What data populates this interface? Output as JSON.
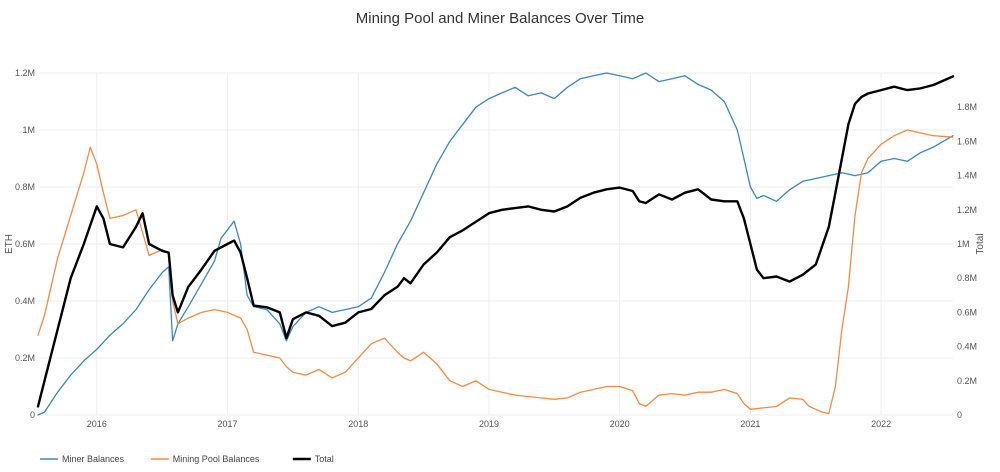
{
  "chart_data": {
    "type": "line",
    "title": "Mining Pool and Miner Balances Over Time",
    "ylabel": "ETH",
    "y2label": "Total",
    "xlim": [
      2015.55,
      2022.55
    ],
    "ylim": [
      0,
      1200000
    ],
    "y2lim": [
      0,
      2000000
    ],
    "x_ticks": [
      2016,
      2017,
      2018,
      2019,
      2020,
      2021,
      2022
    ],
    "x_tick_labels": [
      "2016",
      "2017",
      "2018",
      "2019",
      "2020",
      "2021",
      "2022"
    ],
    "y_ticks": [
      0,
      200000,
      400000,
      600000,
      800000,
      1000000,
      1200000
    ],
    "y_tick_labels": [
      "0",
      "0.2M",
      "0.4M",
      "0.6M",
      "0.8M",
      "1M",
      "1.2M"
    ],
    "y2_ticks": [
      0,
      200000,
      400000,
      600000,
      800000,
      1000000,
      1200000,
      1400000,
      1600000,
      1800000
    ],
    "y2_tick_labels": [
      "0",
      "0.2M",
      "0.4M",
      "0.6M",
      "0.8M",
      "1M",
      "1.2M",
      "1.4M",
      "1.6M",
      "1.8M"
    ],
    "grid": true,
    "legend_position": "bottom-left",
    "series": [
      {
        "name": "Miner Balances",
        "axis": "left",
        "color": "#3a87c0",
        "x": [
          2015.55,
          2015.6,
          2015.7,
          2015.8,
          2015.9,
          2016.0,
          2016.1,
          2016.2,
          2016.3,
          2016.4,
          2016.5,
          2016.55,
          2016.58,
          2016.62,
          2016.7,
          2016.8,
          2016.9,
          2016.95,
          2017.0,
          2017.05,
          2017.1,
          2017.15,
          2017.2,
          2017.3,
          2017.4,
          2017.45,
          2017.5,
          2017.6,
          2017.7,
          2017.8,
          2017.9,
          2018.0,
          2018.1,
          2018.2,
          2018.3,
          2018.4,
          2018.5,
          2018.6,
          2018.7,
          2018.8,
          2018.9,
          2019.0,
          2019.1,
          2019.2,
          2019.3,
          2019.4,
          2019.5,
          2019.6,
          2019.7,
          2019.8,
          2019.9,
          2020.0,
          2020.1,
          2020.2,
          2020.3,
          2020.4,
          2020.5,
          2020.6,
          2020.7,
          2020.8,
          2020.9,
          2020.95,
          2021.0,
          2021.05,
          2021.1,
          2021.2,
          2021.3,
          2021.4,
          2021.5,
          2021.6,
          2021.7,
          2021.8,
          2021.9,
          2022.0,
          2022.1,
          2022.2,
          2022.3,
          2022.4,
          2022.55
        ],
        "values": [
          0,
          10000,
          80000,
          140000,
          190000,
          230000,
          280000,
          320000,
          370000,
          440000,
          500000,
          520000,
          260000,
          320000,
          380000,
          460000,
          540000,
          620000,
          650000,
          680000,
          600000,
          420000,
          380000,
          370000,
          320000,
          260000,
          310000,
          360000,
          380000,
          360000,
          370000,
          380000,
          410000,
          500000,
          600000,
          680000,
          780000,
          880000,
          960000,
          1020000,
          1080000,
          1110000,
          1130000,
          1150000,
          1120000,
          1130000,
          1110000,
          1150000,
          1180000,
          1190000,
          1200000,
          1190000,
          1180000,
          1200000,
          1170000,
          1180000,
          1190000,
          1160000,
          1140000,
          1100000,
          1000000,
          900000,
          800000,
          760000,
          770000,
          750000,
          790000,
          820000,
          830000,
          840000,
          850000,
          840000,
          850000,
          890000,
          900000,
          890000,
          920000,
          940000,
          980000
        ]
      },
      {
        "name": "Mining Pool Balances",
        "axis": "left",
        "color": "#f28b46",
        "x": [
          2015.55,
          2015.6,
          2015.7,
          2015.8,
          2015.9,
          2015.95,
          2016.0,
          2016.05,
          2016.1,
          2016.2,
          2016.3,
          2016.35,
          2016.4,
          2016.5,
          2016.55,
          2016.58,
          2016.62,
          2016.7,
          2016.8,
          2016.9,
          2017.0,
          2017.1,
          2017.15,
          2017.2,
          2017.3,
          2017.4,
          2017.45,
          2017.5,
          2017.6,
          2017.7,
          2017.8,
          2017.9,
          2018.0,
          2018.1,
          2018.2,
          2018.3,
          2018.35,
          2018.4,
          2018.5,
          2018.6,
          2018.7,
          2018.8,
          2018.9,
          2019.0,
          2019.1,
          2019.2,
          2019.3,
          2019.4,
          2019.5,
          2019.6,
          2019.7,
          2019.8,
          2019.9,
          2020.0,
          2020.1,
          2020.15,
          2020.2,
          2020.3,
          2020.4,
          2020.5,
          2020.6,
          2020.7,
          2020.8,
          2020.9,
          2020.95,
          2021.0,
          2021.1,
          2021.2,
          2021.3,
          2021.4,
          2021.45,
          2021.5,
          2021.55,
          2021.6,
          2021.65,
          2021.7,
          2021.75,
          2021.8,
          2021.85,
          2021.9,
          2022.0,
          2022.1,
          2022.2,
          2022.3,
          2022.4,
          2022.55
        ],
        "values": [
          280000,
          350000,
          550000,
          700000,
          850000,
          940000,
          880000,
          780000,
          690000,
          700000,
          720000,
          640000,
          560000,
          580000,
          570000,
          400000,
          320000,
          340000,
          360000,
          370000,
          360000,
          340000,
          300000,
          220000,
          210000,
          200000,
          170000,
          150000,
          140000,
          160000,
          130000,
          150000,
          200000,
          250000,
          270000,
          220000,
          200000,
          190000,
          220000,
          180000,
          120000,
          100000,
          120000,
          90000,
          80000,
          70000,
          65000,
          60000,
          55000,
          60000,
          80000,
          90000,
          100000,
          100000,
          85000,
          40000,
          30000,
          70000,
          75000,
          70000,
          80000,
          80000,
          90000,
          75000,
          40000,
          20000,
          25000,
          30000,
          60000,
          55000,
          30000,
          20000,
          10000,
          5000,
          100000,
          300000,
          450000,
          700000,
          850000,
          900000,
          950000,
          980000,
          1000000,
          990000,
          980000,
          975000
        ]
      },
      {
        "name": "Total",
        "axis": "right",
        "color": "#000000",
        "x": [
          2015.55,
          2015.6,
          2015.7,
          2015.8,
          2015.9,
          2016.0,
          2016.05,
          2016.1,
          2016.2,
          2016.3,
          2016.35,
          2016.4,
          2016.5,
          2016.55,
          2016.58,
          2016.62,
          2016.7,
          2016.8,
          2016.9,
          2017.0,
          2017.05,
          2017.1,
          2017.15,
          2017.2,
          2017.3,
          2017.4,
          2017.45,
          2017.5,
          2017.6,
          2017.7,
          2017.8,
          2017.9,
          2018.0,
          2018.1,
          2018.2,
          2018.3,
          2018.35,
          2018.4,
          2018.5,
          2018.6,
          2018.7,
          2018.8,
          2018.9,
          2019.0,
          2019.1,
          2019.2,
          2019.3,
          2019.4,
          2019.5,
          2019.6,
          2019.7,
          2019.8,
          2019.9,
          2020.0,
          2020.1,
          2020.15,
          2020.2,
          2020.3,
          2020.4,
          2020.5,
          2020.6,
          2020.7,
          2020.8,
          2020.9,
          2020.95,
          2021.0,
          2021.05,
          2021.1,
          2021.2,
          2021.3,
          2021.4,
          2021.5,
          2021.6,
          2021.65,
          2021.7,
          2021.75,
          2021.8,
          2021.85,
          2021.9,
          2022.0,
          2022.1,
          2022.2,
          2022.3,
          2022.4,
          2022.55
        ],
        "values": [
          50000,
          200000,
          500000,
          800000,
          1000000,
          1220000,
          1150000,
          1000000,
          980000,
          1100000,
          1180000,
          1000000,
          960000,
          950000,
          700000,
          600000,
          750000,
          850000,
          960000,
          1000000,
          1020000,
          950000,
          800000,
          640000,
          630000,
          600000,
          450000,
          560000,
          600000,
          580000,
          520000,
          540000,
          600000,
          620000,
          700000,
          750000,
          800000,
          770000,
          880000,
          950000,
          1040000,
          1080000,
          1130000,
          1180000,
          1200000,
          1210000,
          1220000,
          1200000,
          1190000,
          1220000,
          1270000,
          1300000,
          1320000,
          1330000,
          1310000,
          1250000,
          1240000,
          1290000,
          1260000,
          1300000,
          1320000,
          1260000,
          1250000,
          1250000,
          1150000,
          1000000,
          850000,
          800000,
          810000,
          780000,
          820000,
          880000,
          1100000,
          1300000,
          1500000,
          1700000,
          1820000,
          1860000,
          1880000,
          1900000,
          1920000,
          1900000,
          1910000,
          1930000,
          1980000
        ]
      }
    ]
  }
}
